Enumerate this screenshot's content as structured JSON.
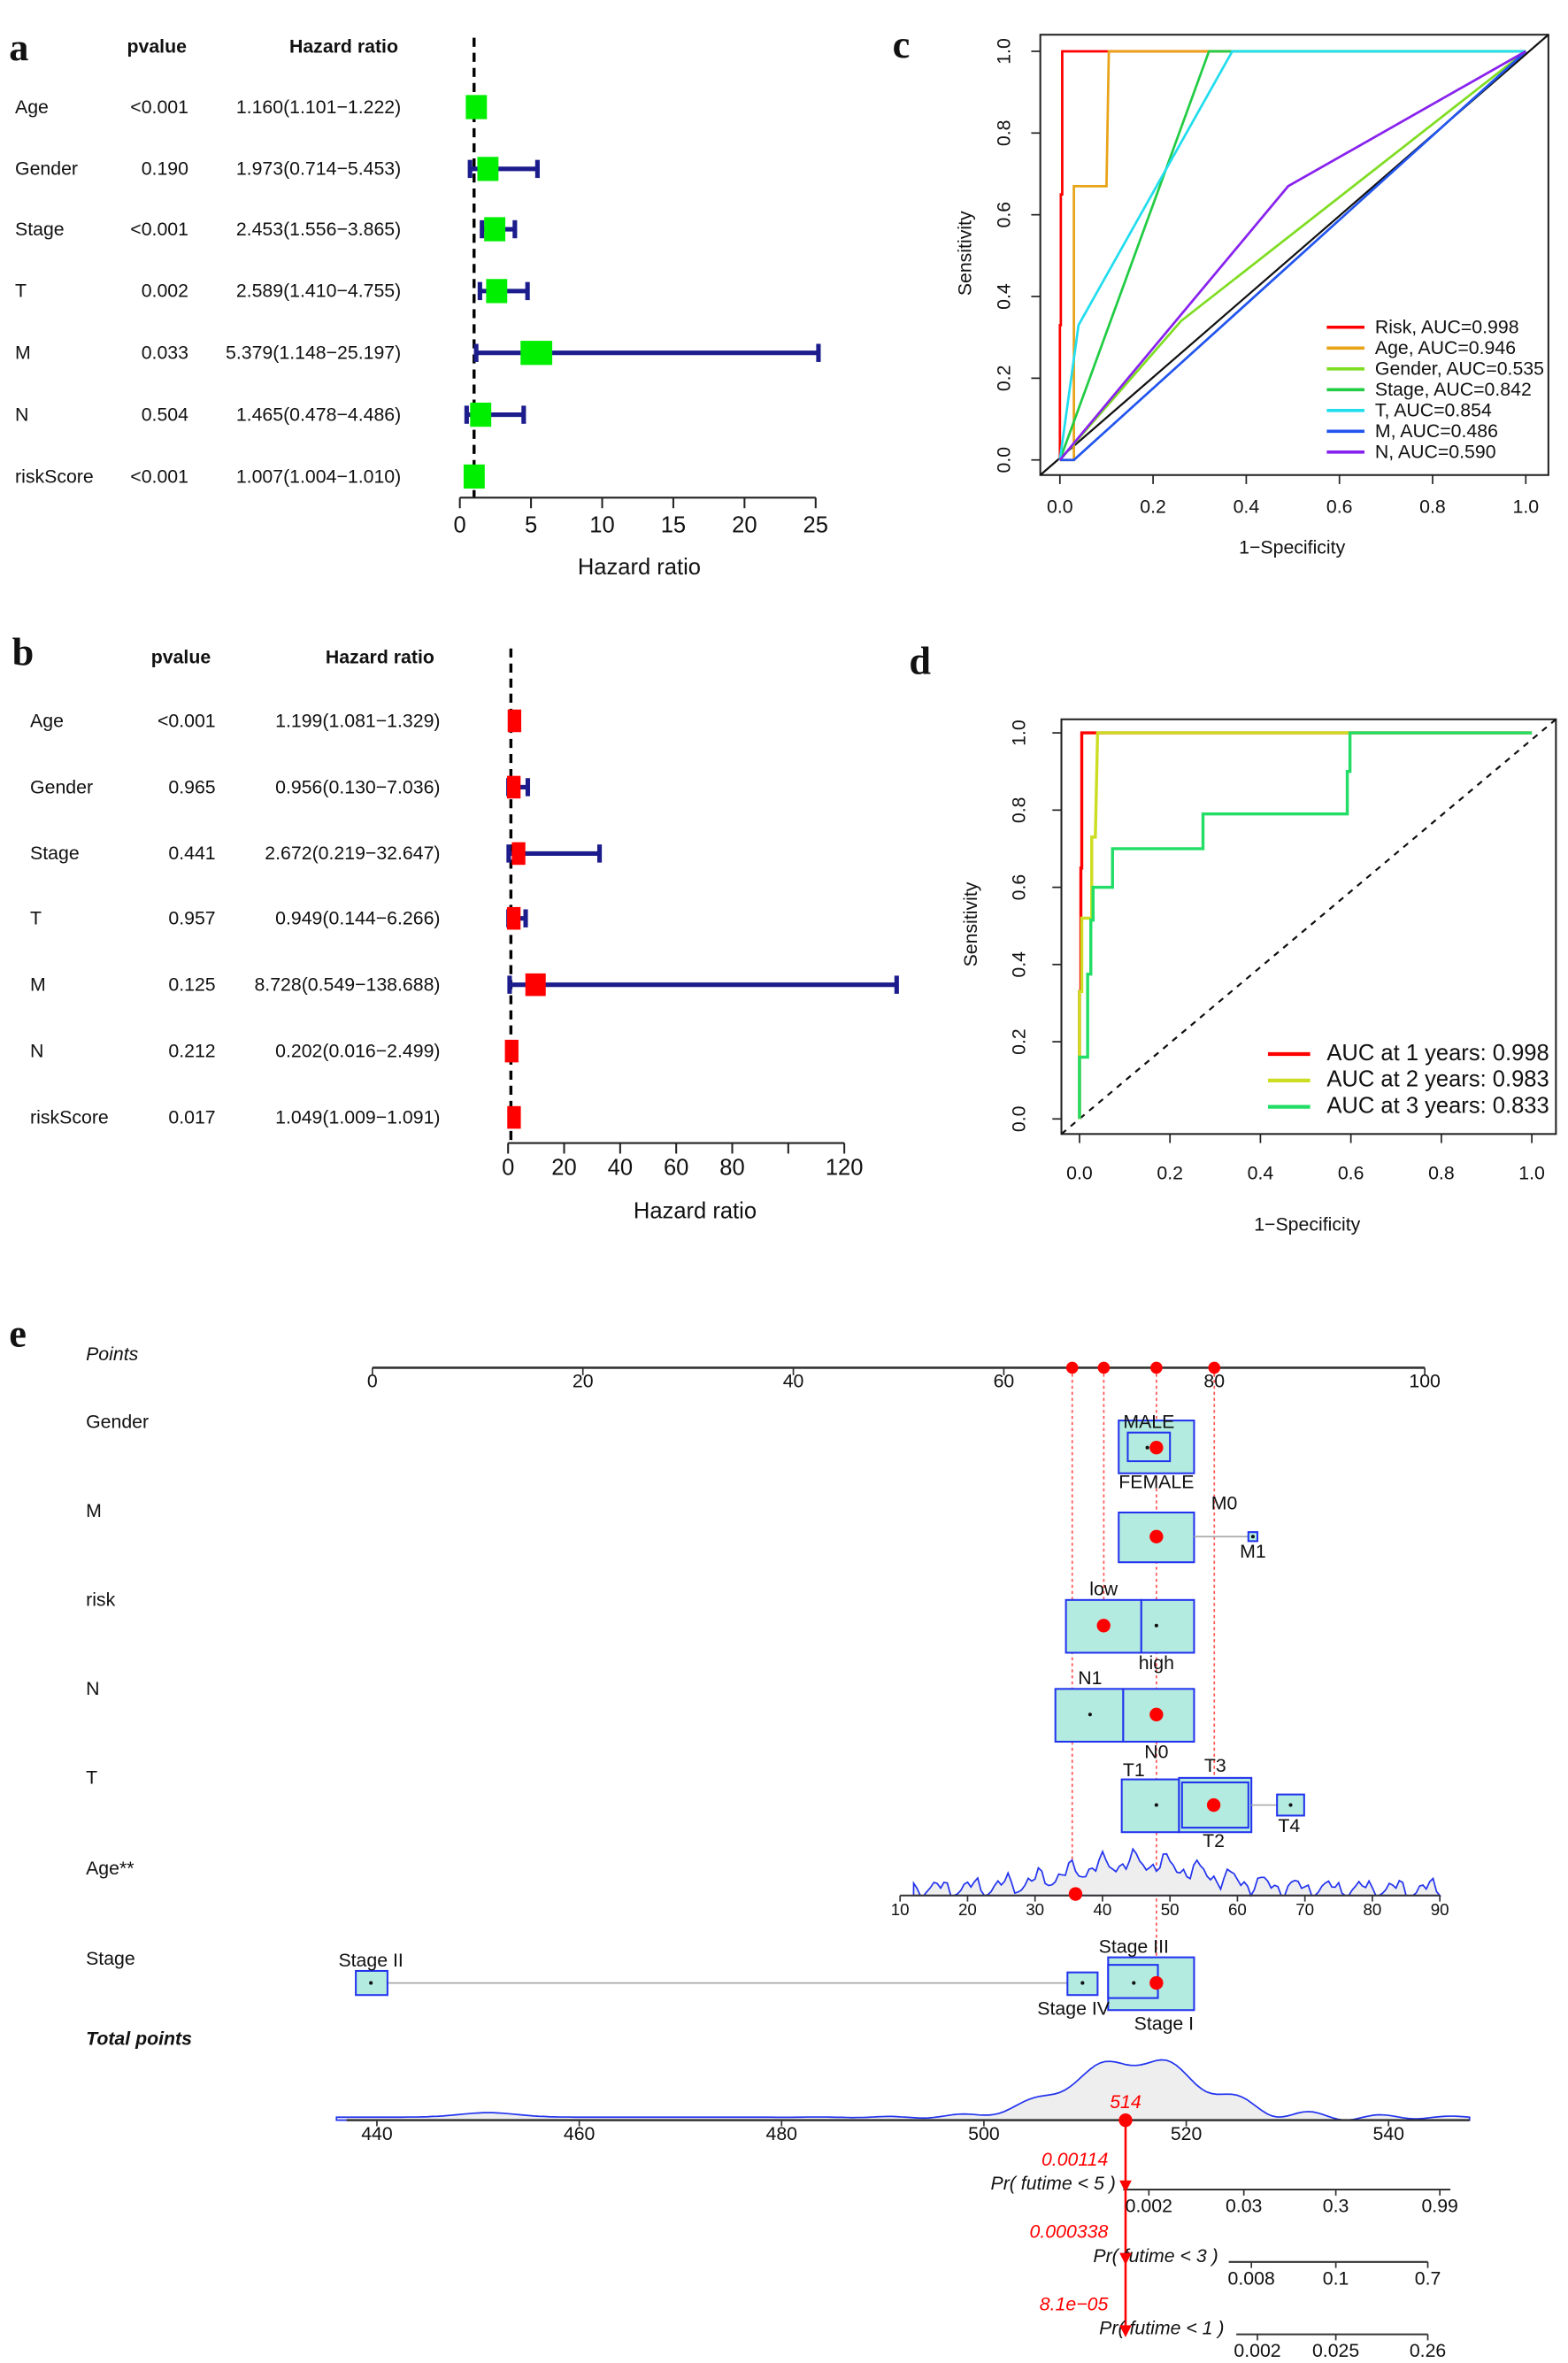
{
  "panel_labels": {
    "a": "a",
    "b": "b",
    "c": "c",
    "d": "d",
    "e": "e"
  },
  "chart_data": [
    {
      "id": "a",
      "type": "forest",
      "header_pvalue": "pvalue",
      "header_hr": "Hazard ratio",
      "xlabel": "Hazard ratio",
      "xlim": [
        0,
        25
      ],
      "ticks": [
        "0",
        "5",
        "10",
        "15",
        "20",
        "25"
      ],
      "reference": 1,
      "box_color": "#00ee00",
      "ci_color": "#1c1c8c",
      "rows": [
        {
          "label": "Age",
          "pvalue": "<0.001",
          "hr_text": "1.160(1.101−1.222)",
          "hr": 1.16,
          "lo": 1.101,
          "hi": 1.222
        },
        {
          "label": "Gender",
          "pvalue": "0.190",
          "hr_text": "1.973(0.714−5.453)",
          "hr": 1.973,
          "lo": 0.714,
          "hi": 5.453
        },
        {
          "label": "Stage",
          "pvalue": "<0.001",
          "hr_text": "2.453(1.556−3.865)",
          "hr": 2.453,
          "lo": 1.556,
          "hi": 3.865
        },
        {
          "label": "T",
          "pvalue": "0.002",
          "hr_text": "2.589(1.410−4.755)",
          "hr": 2.589,
          "lo": 1.41,
          "hi": 4.755
        },
        {
          "label": "M",
          "pvalue": "0.033",
          "hr_text": "5.379(1.148−25.197)",
          "hr": 5.379,
          "lo": 1.148,
          "hi": 25.197
        },
        {
          "label": "N",
          "pvalue": "0.504",
          "hr_text": "1.465(0.478−4.486)",
          "hr": 1.465,
          "lo": 0.478,
          "hi": 4.486
        },
        {
          "label": "riskScore",
          "pvalue": "<0.001",
          "hr_text": "1.007(1.004−1.010)",
          "hr": 1.007,
          "lo": 1.004,
          "hi": 1.01
        }
      ]
    },
    {
      "id": "b",
      "type": "forest",
      "header_pvalue": "pvalue",
      "header_hr": "Hazard ratio",
      "xlabel": "Hazard ratio",
      "xlim": [
        0,
        120
      ],
      "ticks": [
        "0",
        "20",
        "40",
        "60",
        "80",
        "",
        "120"
      ],
      "reference": 1,
      "box_color": "#ff0000",
      "ci_color": "#1c1c8c",
      "rows": [
        {
          "label": "Age",
          "pvalue": "<0.001",
          "hr_text": "1.199(1.081−1.329)",
          "hr": 1.199,
          "lo": 1.081,
          "hi": 1.329
        },
        {
          "label": "Gender",
          "pvalue": "0.965",
          "hr_text": "0.956(0.130−7.036)",
          "hr": 0.956,
          "lo": 0.13,
          "hi": 7.036
        },
        {
          "label": "Stage",
          "pvalue": "0.441",
          "hr_text": "2.672(0.219−32.647)",
          "hr": 2.672,
          "lo": 0.219,
          "hi": 32.647
        },
        {
          "label": "T",
          "pvalue": "0.957",
          "hr_text": "0.949(0.144−6.266)",
          "hr": 0.949,
          "lo": 0.144,
          "hi": 6.266
        },
        {
          "label": "M",
          "pvalue": "0.125",
          "hr_text": "8.728(0.549−138.688)",
          "hr": 8.728,
          "lo": 0.549,
          "hi": 138.688
        },
        {
          "label": "N",
          "pvalue": "0.212",
          "hr_text": "0.202(0.016−2.499)",
          "hr": 0.202,
          "lo": 0.016,
          "hi": 2.499
        },
        {
          "label": "riskScore",
          "pvalue": "0.017",
          "hr_text": "1.049(1.009−1.091)",
          "hr": 1.049,
          "lo": 1.009,
          "hi": 1.091
        }
      ]
    },
    {
      "id": "c",
      "type": "line",
      "xlabel": "1−Specificity",
      "ylabel": "Sensitivity",
      "xlim": [
        0,
        1
      ],
      "ylim": [
        0,
        1
      ],
      "ticks": [
        "0.0",
        "0.2",
        "0.4",
        "0.6",
        "0.8",
        "1.0"
      ],
      "legend_position": "bottom-right",
      "diagonal": true,
      "series": [
        {
          "name": "Risk, AUC=0.998",
          "color": "#ff0000",
          "points": [
            [
              0,
              0
            ],
            [
              0,
              0.33
            ],
            [
              0.002,
              0.33
            ],
            [
              0.002,
              0.65
            ],
            [
              0.005,
              0.65
            ],
            [
              0.005,
              1
            ],
            [
              1,
              1
            ]
          ]
        },
        {
          "name": "Age, AUC=0.946",
          "color": "#e8a317",
          "points": [
            [
              0,
              0
            ],
            [
              0.03,
              0
            ],
            [
              0.03,
              0.67
            ],
            [
              0.1,
              0.67
            ],
            [
              0.105,
              1
            ],
            [
              1,
              1
            ]
          ]
        },
        {
          "name": "Gender, AUC=0.535",
          "color": "#7fdd22",
          "points": [
            [
              0,
              0
            ],
            [
              0.26,
              0.34
            ],
            [
              1,
              1
            ]
          ]
        },
        {
          "name": "Stage, AUC=0.842",
          "color": "#22cc44",
          "points": [
            [
              0,
              0
            ],
            [
              0.32,
              1
            ],
            [
              1,
              1
            ]
          ]
        },
        {
          "name": "T, AUC=0.854",
          "color": "#22ddee",
          "points": [
            [
              0,
              0
            ],
            [
              0.04,
              0.33
            ],
            [
              0.37,
              1
            ],
            [
              1,
              1
            ]
          ]
        },
        {
          "name": "M, AUC=0.486",
          "color": "#2255ee",
          "points": [
            [
              0,
              0
            ],
            [
              0.03,
              0
            ],
            [
              1,
              1
            ]
          ]
        },
        {
          "name": "N, AUC=0.590",
          "color": "#8822ee",
          "points": [
            [
              0,
              0
            ],
            [
              0.49,
              0.67
            ],
            [
              1,
              1
            ]
          ]
        }
      ]
    },
    {
      "id": "d",
      "type": "line",
      "xlabel": "1−Specificity",
      "ylabel": "Sensitivity",
      "xlim": [
        0,
        1
      ],
      "ylim": [
        0,
        1
      ],
      "ticks": [
        "0.0",
        "0.2",
        "0.4",
        "0.6",
        "0.8",
        "1.0"
      ],
      "legend_position": "bottom-right",
      "diagonal": true,
      "series": [
        {
          "name": "AUC at 1 years: 0.998",
          "color": "#ff0000",
          "points": [
            [
              0,
              0
            ],
            [
              0,
              0.33
            ],
            [
              0.003,
              0.33
            ],
            [
              0.003,
              0.65
            ],
            [
              0.005,
              0.65
            ],
            [
              0.005,
              1
            ],
            [
              1,
              1
            ]
          ]
        },
        {
          "name": "AUC at 2 years: 0.983",
          "color": "#ccdd22",
          "points": [
            [
              0,
              0
            ],
            [
              0,
              0.33
            ],
            [
              0.005,
              0.33
            ],
            [
              0.005,
              0.52
            ],
            [
              0.027,
              0.52
            ],
            [
              0.027,
              0.73
            ],
            [
              0.035,
              0.73
            ],
            [
              0.04,
              1
            ],
            [
              1,
              1
            ]
          ]
        },
        {
          "name": "AUC at 3 years: 0.833",
          "color": "#22dd66",
          "points": [
            [
              0,
              0
            ],
            [
              0,
              0.16
            ],
            [
              0.018,
              0.16
            ],
            [
              0.018,
              0.375
            ],
            [
              0.025,
              0.375
            ],
            [
              0.025,
              0.515
            ],
            [
              0.03,
              0.515
            ],
            [
              0.03,
              0.6
            ],
            [
              0.073,
              0.6
            ],
            [
              0.073,
              0.7
            ],
            [
              0.273,
              0.7
            ],
            [
              0.273,
              0.79
            ],
            [
              0.592,
              0.79
            ],
            [
              0.592,
              0.9
            ],
            [
              0.598,
              0.9
            ],
            [
              0.598,
              1
            ],
            [
              1,
              1
            ]
          ]
        }
      ]
    },
    {
      "id": "e",
      "type": "nomogram",
      "points_label": "Points",
      "points_ticks": [
        "0",
        "20",
        "40",
        "60",
        "80",
        "100"
      ],
      "selected_points": [
        66.5,
        69.5,
        74.5,
        80
      ],
      "variables": [
        {
          "label": "Gender",
          "levels": [
            {
              "name": "MALE",
              "points": 73.6
            },
            {
              "name": "FEMALE",
              "points": 74.5
            }
          ]
        },
        {
          "label": "M",
          "levels": [
            {
              "name": "M0",
              "points": 74.5
            },
            {
              "name": "M1",
              "points": 83.7
            }
          ]
        },
        {
          "label": "risk",
          "levels": [
            {
              "name": "low",
              "points": 69.5
            },
            {
              "name": "high",
              "points": 74.5
            }
          ]
        },
        {
          "label": "N",
          "levels": [
            {
              "name": "N1",
              "points": 68.2
            },
            {
              "name": "N0",
              "points": 74.5
            }
          ]
        },
        {
          "label": "T",
          "levels": [
            {
              "name": "T1",
              "points": 74.5
            },
            {
              "name": "T3",
              "points": 80
            },
            {
              "name": "T2",
              "points": 80
            },
            {
              "name": "T4",
              "points": 87.3
            }
          ]
        },
        {
          "label": "Age**",
          "ticks": [
            "10",
            "20",
            "30",
            "40",
            "50",
            "60",
            "70",
            "80",
            "90"
          ],
          "selected": 36
        },
        {
          "label": "Stage",
          "levels": [
            {
              "name": "Stage II",
              "points": 0
            },
            {
              "name": "Stage III",
              "points": 72
            },
            {
              "name": "Stage IV",
              "points": 67.5
            },
            {
              "name": "Stage I",
              "points": 74.5
            }
          ]
        }
      ],
      "total_label": "Total points",
      "total_ticks": [
        "440",
        "460",
        "480",
        "500",
        "520",
        "540"
      ],
      "total_selected": "514",
      "predictions": [
        {
          "label": "Pr( futime < 5 )",
          "value": "0.00114",
          "ticks": [
            "0.002",
            "0.03",
            "0.3",
            "0.99"
          ]
        },
        {
          "label": "Pr( futime < 3 )",
          "value": "0.000338",
          "ticks": [
            "0.008",
            "0.1",
            "0.7"
          ]
        },
        {
          "label": "Pr( futime < 1 )",
          "value": "8.1e−05",
          "ticks": [
            "0.002",
            "0.025",
            "0.26"
          ]
        }
      ],
      "colors": {
        "box_fill": "#b3ebe0",
        "box_stroke": "#2233ee",
        "density_line": "#2233ee",
        "density_fill": "#eeeeee",
        "marker": "#ff0000"
      }
    }
  ]
}
